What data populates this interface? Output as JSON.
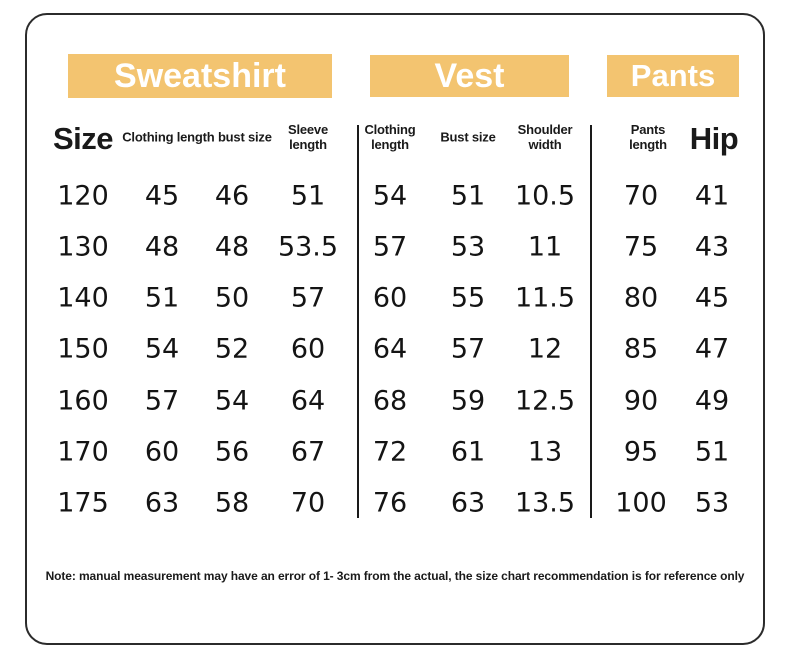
{
  "sections": [
    {
      "title": "Sweatshirt"
    },
    {
      "title": "Vest"
    },
    {
      "title": "Pants"
    }
  ],
  "headers": {
    "size": "Size",
    "sweatshirt_length_bust": "Clothing length bust size",
    "sleeve_length": "Sleeve length",
    "clothing_length": "Clothing length",
    "bust_size": "Bust size",
    "shoulder_width": "Shoulder width",
    "pants_length": "Pants length",
    "hip": "Hip"
  },
  "note": "Note: manual measurement may have an error of 1- 3cm from the actual, the size chart recommendation is for reference only",
  "colors": {
    "band": "#F3C470",
    "band_text": "#FFFFFF",
    "text": "#1A1A1A",
    "border": "#2B2B2B"
  },
  "chart_data": {
    "type": "table",
    "groups": [
      "Sweatshirt",
      "Vest",
      "Pants"
    ],
    "columns": [
      "Size",
      "Sweatshirt clothing length",
      "Sweatshirt bust size",
      "Sweatshirt sleeve length",
      "Vest clothing length",
      "Vest bust size",
      "Vest shoulder width",
      "Pants length",
      "Hip"
    ],
    "rows": [
      [
        120,
        45,
        46,
        51,
        54,
        51,
        10.5,
        70,
        41
      ],
      [
        130,
        48,
        48,
        53.5,
        57,
        53,
        11,
        75,
        43
      ],
      [
        140,
        51,
        50,
        57,
        60,
        55,
        11.5,
        80,
        45
      ],
      [
        150,
        54,
        52,
        60,
        64,
        57,
        12,
        85,
        47
      ],
      [
        160,
        57,
        54,
        64,
        68,
        59,
        12.5,
        90,
        49
      ],
      [
        170,
        60,
        56,
        67,
        72,
        61,
        13,
        95,
        51
      ],
      [
        175,
        63,
        58,
        70,
        76,
        63,
        13.5,
        100,
        53
      ]
    ]
  }
}
